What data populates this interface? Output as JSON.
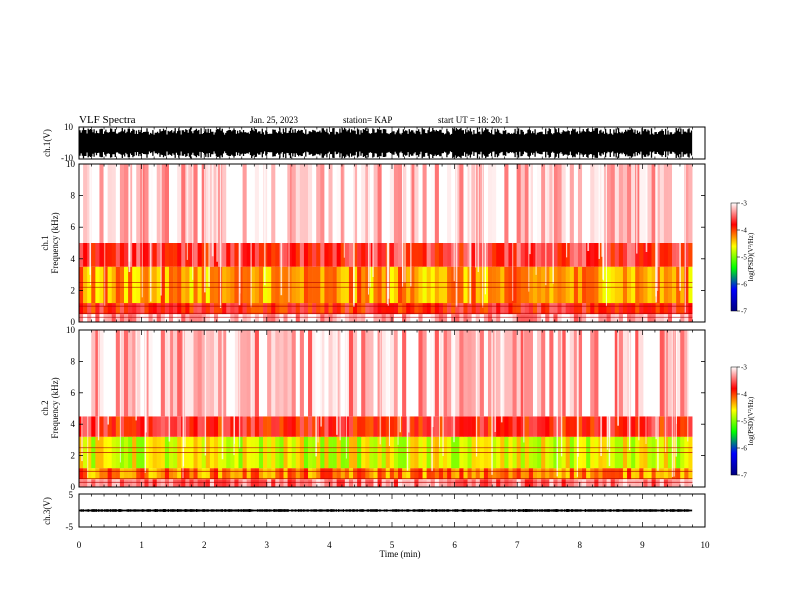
{
  "header": {
    "title": "VLF Spectra",
    "date": "Jan. 25, 2023",
    "station": "station= KAP",
    "start_time": "start UT =  18: 20: 1"
  },
  "chart_data": {
    "type": "heatmap",
    "x_axis": {
      "label": "Time (min)",
      "range": [
        0,
        10
      ],
      "ticks": [
        "0",
        "1",
        "2",
        "3",
        "4",
        "5",
        "6",
        "7",
        "8",
        "9",
        "10"
      ],
      "data_end_min": 9.8
    },
    "panels": [
      {
        "id": "ch1-voltage",
        "type": "line",
        "ylabel": "ch.1(V)",
        "ylim": [
          -10,
          10
        ],
        "tick_labels": [
          "10",
          "-10"
        ],
        "description_values": {
          "min": -10,
          "max": 10
        }
      },
      {
        "id": "ch1-spectrogram",
        "type": "heatmap",
        "ylabel_top": "ch.1",
        "ylabel": "Frequency (kHz)",
        "ylim": [
          0,
          10
        ],
        "tick_labels": [
          "10",
          "8",
          "6",
          "4",
          "2",
          "0"
        ],
        "colorbar": {
          "label": "log(PSD)(V²/Hz)",
          "range": [
            -7,
            -3
          ],
          "tick_labels": [
            "-3",
            "-4",
            "-5",
            "-6",
            "-7"
          ],
          "colors": [
            "#ffffff",
            "#ff0000",
            "#ffff00",
            "#00ff00",
            "#0000ff",
            "#000080"
          ]
        },
        "bands_khz": [
          {
            "from": 0,
            "to": 0.5,
            "level": -3.2
          },
          {
            "from": 0.5,
            "to": 1.2,
            "level": -3.8
          },
          {
            "from": 1.2,
            "to": 3.5,
            "level": -4.3
          },
          {
            "from": 3.5,
            "to": 5.0,
            "level": -3.7
          },
          {
            "from": 5.0,
            "to": 10.0,
            "level": -3.1
          }
        ]
      },
      {
        "id": "ch2-spectrogram",
        "type": "heatmap",
        "ylabel_top": "ch.2",
        "ylabel": "Frequency (kHz)",
        "ylim": [
          0,
          10
        ],
        "tick_labels": [
          "10",
          "8",
          "6",
          "4",
          "2",
          "0"
        ],
        "colorbar": {
          "label": "log(PSD)(V²/Hz)",
          "range": [
            -7,
            -3
          ],
          "tick_labels": [
            "-3",
            "-4",
            "-5",
            "-6",
            "-7"
          ],
          "colors": [
            "#ffffff",
            "#ff0000",
            "#ffff00",
            "#00ff00",
            "#0000ff",
            "#000080"
          ]
        },
        "bands_khz": [
          {
            "from": 0,
            "to": 0.5,
            "level": -3.4
          },
          {
            "from": 0.5,
            "to": 1.2,
            "level": -4.2
          },
          {
            "from": 1.2,
            "to": 3.2,
            "level": -4.7
          },
          {
            "from": 3.2,
            "to": 4.5,
            "level": -3.8
          },
          {
            "from": 4.5,
            "to": 10.0,
            "level": -3.2
          }
        ]
      },
      {
        "id": "ch3-voltage",
        "type": "line",
        "ylabel": "ch.3(V)",
        "ylim": [
          -5,
          5
        ],
        "tick_labels": [
          "5",
          "-5"
        ],
        "description_values": {
          "min": -0.4,
          "max": 0.4
        }
      }
    ]
  }
}
